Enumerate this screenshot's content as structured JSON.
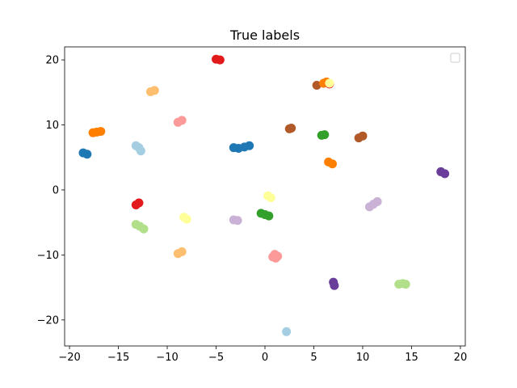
{
  "chart_data": {
    "type": "scatter",
    "title": "True labels",
    "xlabel": "",
    "ylabel": "",
    "xlim": [
      -20.5,
      20.5
    ],
    "ylim": [
      -24,
      22
    ],
    "x_ticks": [
      -20,
      -15,
      -10,
      -5,
      0,
      5,
      10,
      15,
      20
    ],
    "y_ticks": [
      -20,
      -10,
      0,
      10,
      20
    ],
    "grid": false,
    "legend": {
      "visible": true,
      "entries": [],
      "placement": "top-right"
    },
    "palette": "Paired",
    "clusters": [
      {
        "color": "#e31a1c",
        "points": [
          [
            -5.0,
            20.1
          ],
          [
            -4.6,
            20.0
          ]
        ]
      },
      {
        "color": "#fdbf6f",
        "points": [
          [
            -11.7,
            15.1
          ],
          [
            -11.3,
            15.3
          ]
        ]
      },
      {
        "color": "#ff7f00",
        "points": [
          [
            -17.6,
            8.8
          ],
          [
            -17.2,
            8.9
          ],
          [
            -16.8,
            9.0
          ]
        ]
      },
      {
        "color": "#fb9a99",
        "points": [
          [
            -8.9,
            10.4
          ],
          [
            -8.5,
            10.7
          ]
        ]
      },
      {
        "color": "#1f78b4",
        "points": [
          [
            -18.6,
            5.7
          ],
          [
            -18.2,
            5.5
          ]
        ]
      },
      {
        "color": "#a6cee3",
        "points": [
          [
            -13.2,
            6.8
          ],
          [
            -12.9,
            6.5
          ],
          [
            -12.7,
            6.0
          ]
        ]
      },
      {
        "color": "#1f78b4",
        "points": [
          [
            -3.2,
            6.5
          ],
          [
            -2.7,
            6.4
          ],
          [
            -2.1,
            6.6
          ],
          [
            -1.6,
            6.8
          ]
        ]
      },
      {
        "color": "#b15928",
        "points": [
          [
            2.5,
            9.4
          ],
          [
            2.7,
            9.5
          ]
        ]
      },
      {
        "color": "#33a02c",
        "points": [
          [
            5.8,
            8.4
          ],
          [
            6.1,
            8.5
          ]
        ]
      },
      {
        "color": "#b15928",
        "points": [
          [
            9.6,
            8.0
          ],
          [
            10.0,
            8.3
          ]
        ]
      },
      {
        "color": "#b15928",
        "points": [
          [
            5.3,
            16.1
          ]
        ]
      },
      {
        "color": "#ff7f00",
        "points": [
          [
            6.0,
            16.4
          ],
          [
            6.3,
            16.6
          ]
        ]
      },
      {
        "color": "#e31a1c",
        "points": [
          [
            6.6,
            16.3
          ]
        ]
      },
      {
        "color": "#ffff99",
        "points": [
          [
            6.6,
            16.4
          ]
        ]
      },
      {
        "color": "#ff7f00",
        "points": [
          [
            6.5,
            4.3
          ],
          [
            6.9,
            4.0
          ]
        ]
      },
      {
        "color": "#6a3d9a",
        "points": [
          [
            18.0,
            2.8
          ],
          [
            18.4,
            2.5
          ]
        ]
      },
      {
        "color": "#e31a1c",
        "points": [
          [
            -13.2,
            -2.3
          ],
          [
            -12.9,
            -2.0
          ]
        ]
      },
      {
        "color": "#ffff99",
        "points": [
          [
            0.3,
            -0.9
          ],
          [
            0.6,
            -1.2
          ]
        ]
      },
      {
        "color": "#cab2d6",
        "points": [
          [
            10.7,
            -2.6
          ],
          [
            11.1,
            -2.2
          ],
          [
            11.5,
            -1.8
          ]
        ]
      },
      {
        "color": "#33a02c",
        "points": [
          [
            -0.4,
            -3.6
          ],
          [
            0.0,
            -3.8
          ],
          [
            0.4,
            -4.0
          ]
        ]
      },
      {
        "color": "#cab2d6",
        "points": [
          [
            -3.2,
            -4.6
          ],
          [
            -2.8,
            -4.7
          ]
        ]
      },
      {
        "color": "#ffff99",
        "points": [
          [
            -8.3,
            -4.2
          ],
          [
            -8.0,
            -4.5
          ]
        ]
      },
      {
        "color": "#b2df8a",
        "points": [
          [
            -13.2,
            -5.3
          ],
          [
            -12.8,
            -5.6
          ],
          [
            -12.4,
            -6.0
          ]
        ]
      },
      {
        "color": "#fdbf6f",
        "points": [
          [
            -8.9,
            -9.8
          ],
          [
            -8.5,
            -9.5
          ]
        ]
      },
      {
        "color": "#fb9a99",
        "points": [
          [
            0.8,
            -10.3
          ],
          [
            1.0,
            -9.9
          ],
          [
            1.3,
            -10.2
          ],
          [
            1.1,
            -10.5
          ]
        ]
      },
      {
        "color": "#6a3d9a",
        "points": [
          [
            7.0,
            -14.2
          ],
          [
            7.1,
            -14.7
          ]
        ]
      },
      {
        "color": "#b2df8a",
        "points": [
          [
            13.7,
            -14.5
          ],
          [
            14.1,
            -14.4
          ],
          [
            14.4,
            -14.5
          ]
        ]
      },
      {
        "color": "#a6cee3",
        "points": [
          [
            2.2,
            -21.8
          ]
        ]
      }
    ]
  }
}
